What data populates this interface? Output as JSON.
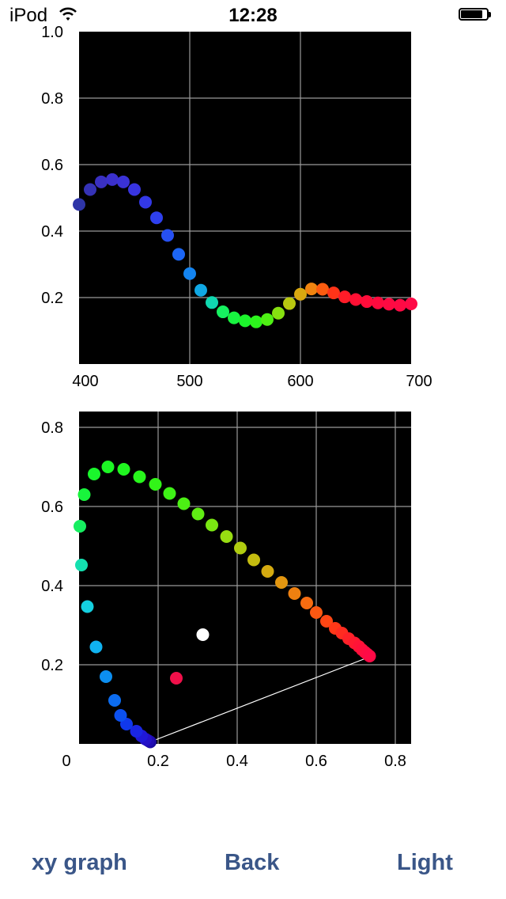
{
  "status_bar": {
    "carrier": "iPod",
    "time": "12:28",
    "battery_level": 0.85
  },
  "toolbar": {
    "left_label": "xy graph",
    "center_label": "Back",
    "right_label": "Light",
    "accent_color": "#3a5688"
  },
  "chart_data": [
    {
      "type": "scatter",
      "xlim": [
        400,
        700
      ],
      "ylim": [
        0,
        1.0
      ],
      "x_ticks": [
        "400",
        "500",
        "600",
        "700"
      ],
      "y_ticks": [
        "1.0",
        "0.8",
        "0.6",
        "0.4",
        "0.2"
      ],
      "grid": true,
      "background": "#000000",
      "points": [
        {
          "x": 400,
          "y": 0.48,
          "color": "#2e35a8"
        },
        {
          "x": 410,
          "y": 0.525,
          "color": "#3532b6"
        },
        {
          "x": 420,
          "y": 0.548,
          "color": "#3a30c2"
        },
        {
          "x": 430,
          "y": 0.555,
          "color": "#3b30cc"
        },
        {
          "x": 440,
          "y": 0.548,
          "color": "#3a32d6"
        },
        {
          "x": 450,
          "y": 0.525,
          "color": "#3834e0"
        },
        {
          "x": 460,
          "y": 0.487,
          "color": "#3338e6"
        },
        {
          "x": 470,
          "y": 0.44,
          "color": "#2e40ee"
        },
        {
          "x": 480,
          "y": 0.387,
          "color": "#2650f2"
        },
        {
          "x": 490,
          "y": 0.33,
          "color": "#1c66f6"
        },
        {
          "x": 500,
          "y": 0.272,
          "color": "#1384f0"
        },
        {
          "x": 510,
          "y": 0.222,
          "color": "#10a8e4"
        },
        {
          "x": 520,
          "y": 0.185,
          "color": "#10d8b0"
        },
        {
          "x": 530,
          "y": 0.157,
          "color": "#16f260"
        },
        {
          "x": 540,
          "y": 0.139,
          "color": "#18f440"
        },
        {
          "x": 550,
          "y": 0.13,
          "color": "#1cf52c"
        },
        {
          "x": 560,
          "y": 0.127,
          "color": "#2cf41c"
        },
        {
          "x": 570,
          "y": 0.134,
          "color": "#4ef014"
        },
        {
          "x": 580,
          "y": 0.153,
          "color": "#86e010"
        },
        {
          "x": 590,
          "y": 0.182,
          "color": "#b8c810"
        },
        {
          "x": 600,
          "y": 0.21,
          "color": "#d8a810"
        },
        {
          "x": 610,
          "y": 0.226,
          "color": "#f08410"
        },
        {
          "x": 620,
          "y": 0.225,
          "color": "#fc5c10"
        },
        {
          "x": 630,
          "y": 0.214,
          "color": "#ff3418"
        },
        {
          "x": 640,
          "y": 0.202,
          "color": "#ff1c28"
        },
        {
          "x": 650,
          "y": 0.194,
          "color": "#ff1034"
        },
        {
          "x": 660,
          "y": 0.188,
          "color": "#ff0c3a"
        },
        {
          "x": 670,
          "y": 0.184,
          "color": "#ff0a3e"
        },
        {
          "x": 680,
          "y": 0.18,
          "color": "#ff0a42"
        },
        {
          "x": 690,
          "y": 0.177,
          "color": "#ff0a44"
        },
        {
          "x": 700,
          "y": 0.181,
          "color": "#ff0a46"
        }
      ]
    },
    {
      "type": "scatter",
      "xlim": [
        0,
        0.84
      ],
      "ylim": [
        0,
        0.84
      ],
      "x_ticks": [
        "0",
        "0.2",
        "0.4",
        "0.6",
        "0.8"
      ],
      "y_ticks": [
        "0.8",
        "0.6",
        "0.4",
        "0.2"
      ],
      "grid": true,
      "background": "#000000",
      "line": {
        "from": [
          0.18,
          0.005
        ],
        "to": [
          0.735,
          0.22
        ],
        "color": "#ffffff"
      },
      "points": [
        {
          "x": 0.18,
          "y": 0.005,
          "color": "#1a0aa0"
        },
        {
          "x": 0.175,
          "y": 0.008,
          "color": "#200cb4"
        },
        {
          "x": 0.168,
          "y": 0.012,
          "color": "#2410c8"
        },
        {
          "x": 0.158,
          "y": 0.02,
          "color": "#2018d8"
        },
        {
          "x": 0.145,
          "y": 0.032,
          "color": "#1a26e4"
        },
        {
          "x": 0.12,
          "y": 0.05,
          "color": "#1038ec"
        },
        {
          "x": 0.105,
          "y": 0.072,
          "color": "#0c50f0"
        },
        {
          "x": 0.09,
          "y": 0.11,
          "color": "#0c6cf0"
        },
        {
          "x": 0.068,
          "y": 0.17,
          "color": "#0c8ef0"
        },
        {
          "x": 0.043,
          "y": 0.245,
          "color": "#10b2f0"
        },
        {
          "x": 0.021,
          "y": 0.347,
          "color": "#14d0e0"
        },
        {
          "x": 0.006,
          "y": 0.452,
          "color": "#14e0b0"
        },
        {
          "x": 0.002,
          "y": 0.55,
          "color": "#16ee60"
        },
        {
          "x": 0.013,
          "y": 0.63,
          "color": "#18f43c"
        },
        {
          "x": 0.038,
          "y": 0.682,
          "color": "#1af62c"
        },
        {
          "x": 0.073,
          "y": 0.7,
          "color": "#1cf624"
        },
        {
          "x": 0.113,
          "y": 0.694,
          "color": "#20f620"
        },
        {
          "x": 0.153,
          "y": 0.675,
          "color": "#28f61c"
        },
        {
          "x": 0.193,
          "y": 0.656,
          "color": "#32f418"
        },
        {
          "x": 0.229,
          "y": 0.633,
          "color": "#3ef216"
        },
        {
          "x": 0.265,
          "y": 0.607,
          "color": "#4cf014"
        },
        {
          "x": 0.301,
          "y": 0.581,
          "color": "#60ec14"
        },
        {
          "x": 0.336,
          "y": 0.553,
          "color": "#7ae612"
        },
        {
          "x": 0.373,
          "y": 0.524,
          "color": "#98dc12"
        },
        {
          "x": 0.408,
          "y": 0.495,
          "color": "#b0cc10"
        },
        {
          "x": 0.442,
          "y": 0.465,
          "color": "#c4bc10"
        },
        {
          "x": 0.477,
          "y": 0.436,
          "color": "#d4aa10"
        },
        {
          "x": 0.512,
          "y": 0.408,
          "color": "#e29610"
        },
        {
          "x": 0.545,
          "y": 0.38,
          "color": "#ee8010"
        },
        {
          "x": 0.576,
          "y": 0.356,
          "color": "#f86c10"
        },
        {
          "x": 0.6,
          "y": 0.332,
          "color": "#fc5812"
        },
        {
          "x": 0.626,
          "y": 0.31,
          "color": "#ff4614"
        },
        {
          "x": 0.648,
          "y": 0.292,
          "color": "#ff3818"
        },
        {
          "x": 0.665,
          "y": 0.28,
          "color": "#ff2c20"
        },
        {
          "x": 0.682,
          "y": 0.266,
          "color": "#ff2228"
        },
        {
          "x": 0.697,
          "y": 0.255,
          "color": "#ff1a30"
        },
        {
          "x": 0.708,
          "y": 0.246,
          "color": "#ff1436"
        },
        {
          "x": 0.716,
          "y": 0.238,
          "color": "#ff103a"
        },
        {
          "x": 0.723,
          "y": 0.232,
          "color": "#ff0e3e"
        },
        {
          "x": 0.729,
          "y": 0.227,
          "color": "#ff0c42"
        },
        {
          "x": 0.735,
          "y": 0.222,
          "color": "#ff0a46"
        },
        {
          "x": 0.313,
          "y": 0.276,
          "color": "#ffffff"
        },
        {
          "x": 0.246,
          "y": 0.166,
          "color": "#f0104a"
        }
      ]
    }
  ]
}
